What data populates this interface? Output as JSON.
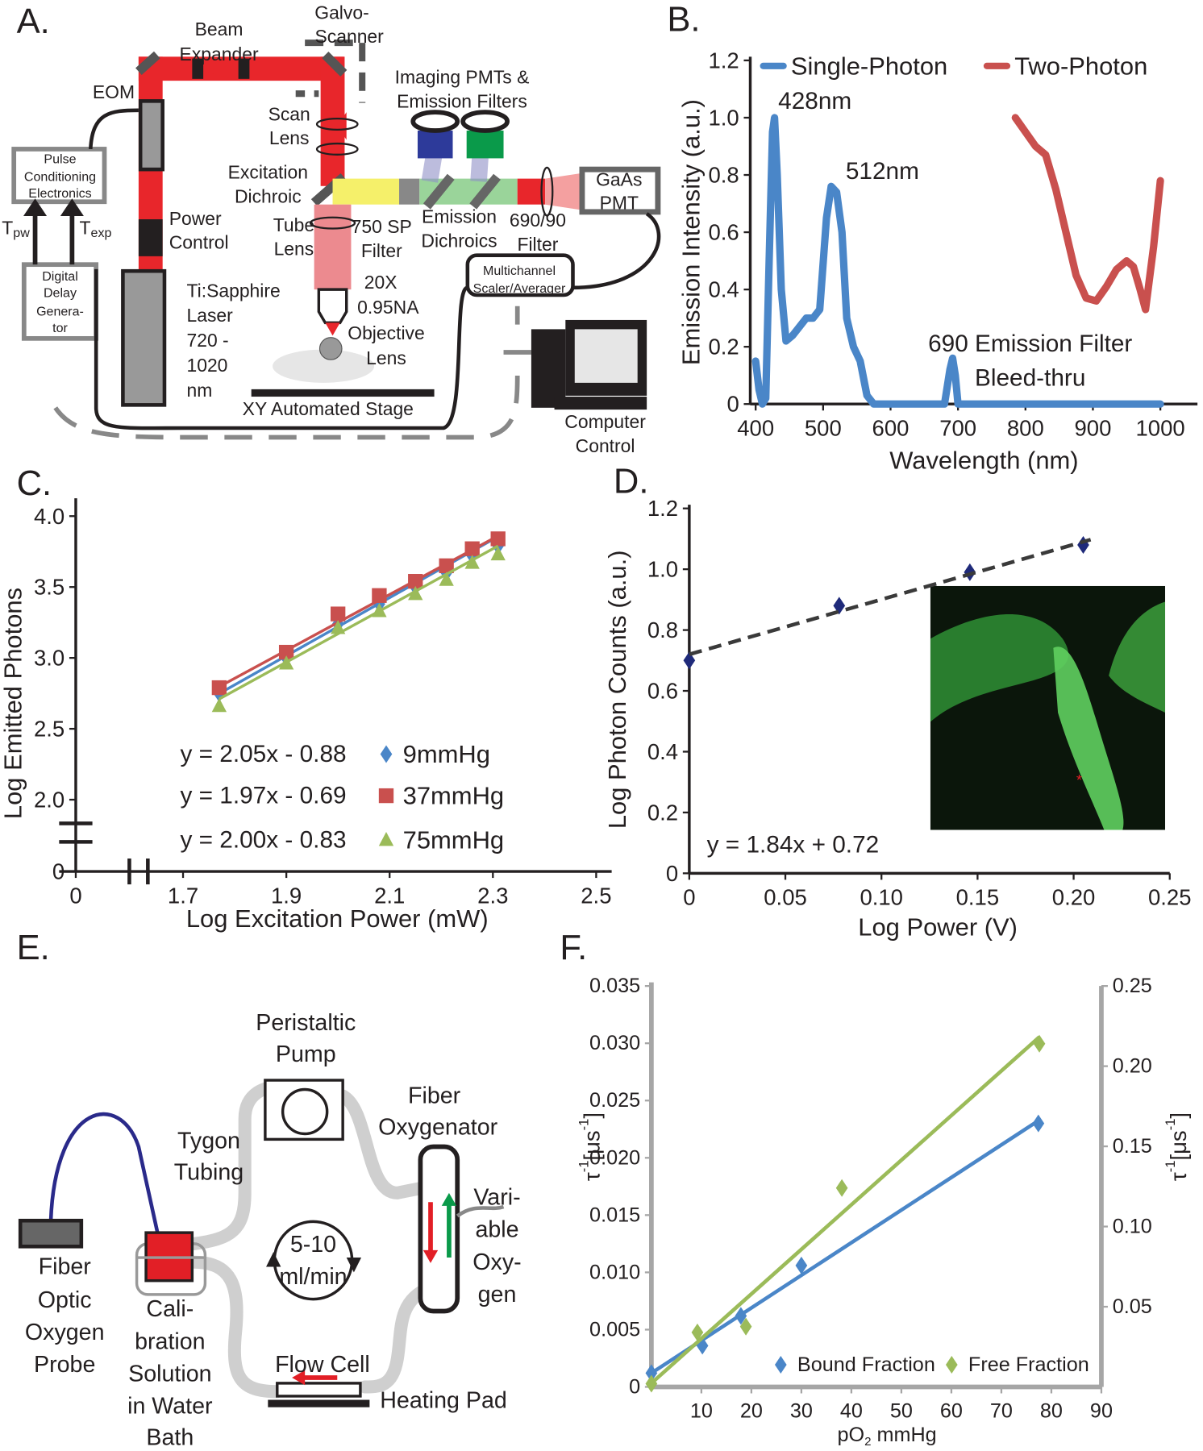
{
  "panel_labels": [
    "A.",
    "B.",
    "C.",
    "D.",
    "E.",
    "F."
  ],
  "diagram_a": {
    "labels": [
      "Beam",
      "Expander",
      "Galvo-",
      "Scanner",
      "EOM",
      "Imaging PMTs &",
      "Emission Filters",
      "Scan",
      "Lens",
      "Excitation",
      "Dichroic",
      "Pulse",
      "Conditioning",
      "Electronics",
      "GaAs",
      "PMT",
      "Power",
      "Control",
      "Tube",
      "Lens",
      "750 SP",
      "Filter",
      "Emission",
      "Dichroics",
      "690/90",
      "Filter",
      "T",
      "pw",
      "T",
      "exp",
      "Digital",
      "Delay",
      "Genera-",
      "tor",
      "Ti:Sapphire",
      "Laser",
      "720 -",
      "1020",
      "nm",
      "Multichannel",
      "Scaler/Averager",
      "20X",
      "0.95NA",
      "Objective",
      "Lens",
      "XY Automated Stage",
      "Computer",
      "Control"
    ]
  },
  "diagram_e": {
    "labels": [
      "Peristaltic",
      "Pump",
      "Fiber",
      "Oxygenator",
      "Tygon",
      "Tubing",
      "5-10",
      "ml/min",
      "Vari-",
      "able",
      "Oxy-",
      "gen",
      "Fiber",
      "Optic",
      "Oxygen",
      "Probe",
      "Cali-",
      "bration",
      "Solution",
      "in Water",
      "Bath",
      "Flow Cell",
      "Heating Pad"
    ]
  },
  "chart_data": [
    {
      "type": "line",
      "xlabel": "Wavelength (nm)",
      "ylabel": "Emission Intensity (a.u.)",
      "xlim": [
        392,
        1055
      ],
      "ylim": [
        0,
        1.2
      ],
      "xticks": [
        400,
        500,
        600,
        700,
        800,
        900,
        1000
      ],
      "yticks": [
        0,
        0.2,
        0.4,
        0.6,
        0.8,
        {
          "value": 1,
          "label": "1.0"
        },
        1.2
      ],
      "axis_color": "#231f20",
      "annotations": [
        "428nm",
        "512nm",
        "690 Emission Filter",
        "Bleed-thru"
      ],
      "series": [
        {
          "name": "Single-Photon",
          "color": "#4a86c8",
          "x": [
            400,
            405,
            410,
            415,
            420,
            425,
            428,
            432,
            438,
            445,
            455,
            465,
            475,
            485,
            495,
            505,
            512,
            520,
            528,
            535,
            545,
            555,
            565,
            575,
            600,
            650,
            680,
            688,
            692,
            696,
            700,
            750,
            800,
            900,
            1000
          ],
          "values": [
            0.15,
            0.05,
            0,
            0.02,
            0.5,
            0.95,
            1.0,
            0.8,
            0.4,
            0.22,
            0.24,
            0.27,
            0.3,
            0.3,
            0.33,
            0.65,
            0.76,
            0.74,
            0.6,
            0.3,
            0.2,
            0.15,
            0.03,
            0,
            0,
            0,
            0,
            0.12,
            0.16,
            0.1,
            0,
            0,
            0,
            0,
            0
          ]
        },
        {
          "name": "Two-Photon",
          "color": "#c9504e",
          "x": [
            785,
            800,
            815,
            830,
            845,
            860,
            875,
            890,
            905,
            920,
            935,
            950,
            960,
            970,
            978,
            990,
            1000
          ],
          "values": [
            1.0,
            0.95,
            0.9,
            0.87,
            0.75,
            0.6,
            0.45,
            0.37,
            0.36,
            0.41,
            0.47,
            0.5,
            0.48,
            0.4,
            0.33,
            0.55,
            0.78
          ]
        }
      ]
    },
    {
      "type": "scatter",
      "axis_break": true,
      "xlabel": "Log Excitation Power (mW)",
      "ylabel": "Log Emitted Photons",
      "xlim": [
        1.63,
        2.53
      ],
      "ylim": [
        1.8,
        4.1
      ],
      "xticks": [
        0,
        1.7,
        1.9,
        2.1,
        2.3,
        2.5
      ],
      "yticks": [
        0,
        {
          "value": 2,
          "label": "2.0"
        },
        2.5,
        {
          "value": 3,
          "label": "3.0"
        },
        3.5,
        {
          "value": 4,
          "label": "4.0"
        }
      ],
      "axis_color": "#231f20",
      "x": [
        1.77,
        1.9,
        2.0,
        2.08,
        2.15,
        2.21,
        2.26,
        2.31
      ],
      "series": [
        {
          "name": "9mmHg",
          "color": "#4a86c8",
          "marker": "diamond",
          "values": [
            2.75,
            3.0,
            3.24,
            3.38,
            3.5,
            3.6,
            3.72,
            3.79
          ],
          "fit": {
            "label": "y = 2.05x - 0.88",
            "slope": 2.05,
            "intercept": -0.88
          }
        },
        {
          "name": "37mmHg",
          "color": "#c9504e",
          "marker": "square",
          "values": [
            2.79,
            3.04,
            3.31,
            3.44,
            3.54,
            3.65,
            3.77,
            3.84
          ],
          "fit": {
            "label": "y = 1.97x - 0.69",
            "slope": 1.97,
            "intercept": -0.69
          }
        },
        {
          "name": "75mmHg",
          "color": "#9bbb59",
          "marker": "triangle",
          "values": [
            2.66,
            2.96,
            3.21,
            3.33,
            3.45,
            3.55,
            3.67,
            3.73
          ],
          "fit": {
            "label": "y = 2.00x - 0.83",
            "slope": 2.0,
            "intercept": -0.83
          }
        }
      ]
    },
    {
      "type": "scatter",
      "xlabel": "Log Power (V)",
      "ylabel": "Log Photon Counts (a.u.)",
      "xlim": [
        0,
        0.25
      ],
      "ylim": [
        0,
        1.2
      ],
      "xticks": [
        0,
        0.05,
        {
          "value": 0.1,
          "label": "0.10"
        },
        0.15,
        {
          "value": 0.2,
          "label": "0.20"
        },
        0.25
      ],
      "yticks": [
        0,
        0.2,
        0.4,
        0.6,
        0.8,
        {
          "value": 1,
          "label": "1.0"
        },
        1.2
      ],
      "axis_color": "#231f20",
      "x": [
        0,
        0.078,
        0.146,
        0.205
      ],
      "series": [
        {
          "color": "#1f2a7a",
          "marker": "diamond",
          "values": [
            0.7,
            0.88,
            0.99,
            1.08
          ]
        }
      ],
      "fit": {
        "label": "y = 1.84x + 0.72",
        "slope": 1.84,
        "intercept": 0.72
      },
      "inset_marker": "*"
    },
    {
      "type": "scatter",
      "xlabel_parts": [
        "pO",
        "2",
        " mmHg"
      ],
      "ylabel_parts": [
        "τ",
        "-1",
        "[μs",
        "-1",
        "]"
      ],
      "y2label_parts": [
        "τ",
        "-1",
        "[μs",
        "-1",
        "]"
      ],
      "xlim": [
        0,
        90
      ],
      "ylim": [
        0,
        0.035
      ],
      "y2lim": [
        0,
        0.25
      ],
      "xticks": [
        10,
        20,
        30,
        40,
        50,
        60,
        70,
        80,
        90
      ],
      "yticks": [
        0,
        0.005,
        {
          "value": 0.01,
          "label": "0.010"
        },
        0.015,
        {
          "value": 0.02,
          "label": "0.020"
        },
        0.025,
        {
          "value": 0.03,
          "label": "0.030"
        },
        0.035
      ],
      "y2ticks": [
        0.05,
        {
          "value": 0.1,
          "label": "0.10"
        },
        0.15,
        {
          "value": 0.2,
          "label": "0.20"
        },
        0.25
      ],
      "axis_color": "#a6a6a6",
      "trendline": true,
      "series": [
        {
          "name": "Bound Fraction",
          "color": "#4a86c8",
          "marker": "diamond",
          "x": [
            0,
            10.2,
            17.9,
            30,
            77.4
          ],
          "values": [
            0.0012,
            0.0036,
            0.0062,
            0.0106,
            0.023
          ]
        },
        {
          "name": "Free Fraction",
          "color": "#9bbb59",
          "marker": "diamond",
          "axis": "y2",
          "x": [
            0,
            9.2,
            18.9,
            38.1,
            77.6
          ],
          "values": [
            0.002,
            0.034,
            0.0376,
            0.124,
            0.214
          ]
        }
      ]
    }
  ]
}
